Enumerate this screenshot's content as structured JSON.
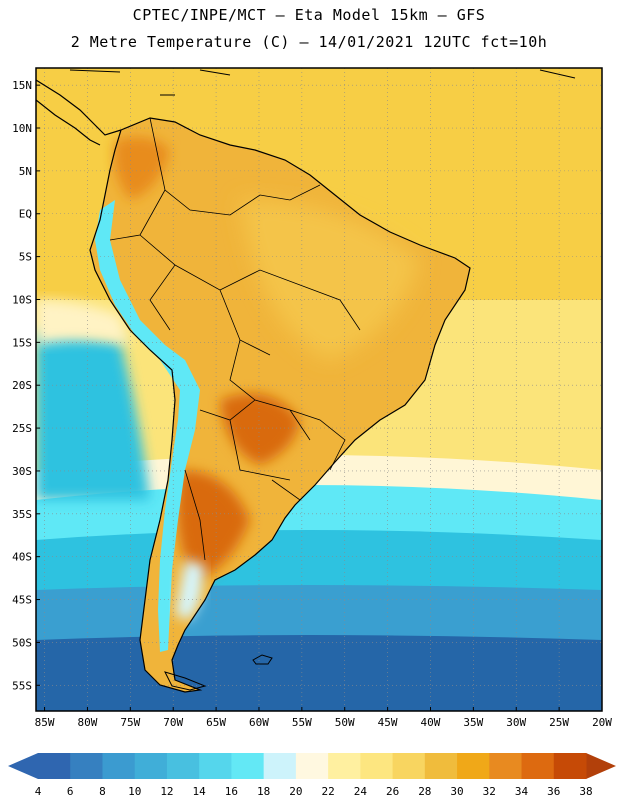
{
  "header": {
    "line1": "CPTEC/INPE/MCT –  Eta Model 15km – GFS",
    "line2": "2 Metre Temperature (C) – 14/01/2021 12UTC fct=10h"
  },
  "map": {
    "lat_range": [
      -58,
      17
    ],
    "lon_range": [
      -86,
      -20
    ],
    "lat_ticks": [
      "15N",
      "10N",
      "5N",
      "EQ",
      "5S",
      "10S",
      "15S",
      "20S",
      "25S",
      "30S",
      "35S",
      "40S",
      "45S",
      "50S",
      "55S"
    ],
    "lat_tick_values": [
      15,
      10,
      5,
      0,
      -5,
      -10,
      -15,
      -20,
      -25,
      -30,
      -35,
      -40,
      -45,
      -50,
      -55
    ],
    "lon_ticks": [
      "85W",
      "80W",
      "75W",
      "70W",
      "65W",
      "60W",
      "55W",
      "50W",
      "45W",
      "40W",
      "35W",
      "30W",
      "25W",
      "20W"
    ],
    "lon_tick_values": [
      -85,
      -80,
      -75,
      -70,
      -65,
      -60,
      -55,
      -50,
      -45,
      -40,
      -35,
      -30,
      -25,
      -20
    ],
    "colors": {
      "ocean_north": "#f7ce45",
      "ocean_mid": "#fbe47a",
      "land_warm": "#f0b43a",
      "land_hot": "#e88c1e",
      "land_very_hot": "#d96a10",
      "andes": "#5fe8f6",
      "ocean_cool": "#2ec2e0",
      "ocean_cold": "#3a9fd0",
      "ocean_coldest": "#2566a8",
      "coast": "#000000"
    }
  },
  "colorbar": {
    "labels": [
      "4",
      "6",
      "8",
      "10",
      "12",
      "14",
      "16",
      "18",
      "20",
      "22",
      "24",
      "26",
      "28",
      "30",
      "32",
      "34",
      "36",
      "38"
    ],
    "low_color": "#2f66b0",
    "high_color": "#b2400a",
    "colors": [
      "#2f66b0",
      "#3680c0",
      "#3b9bd0",
      "#40aed8",
      "#48c0e0",
      "#55d6ec",
      "#63e8f5",
      "#cdf3fb",
      "#fff8e0",
      "#fff0a0",
      "#fde680",
      "#f8d560",
      "#f0bc3c",
      "#f0a818",
      "#e88a20",
      "#dd6a10",
      "#c64a06"
    ]
  }
}
